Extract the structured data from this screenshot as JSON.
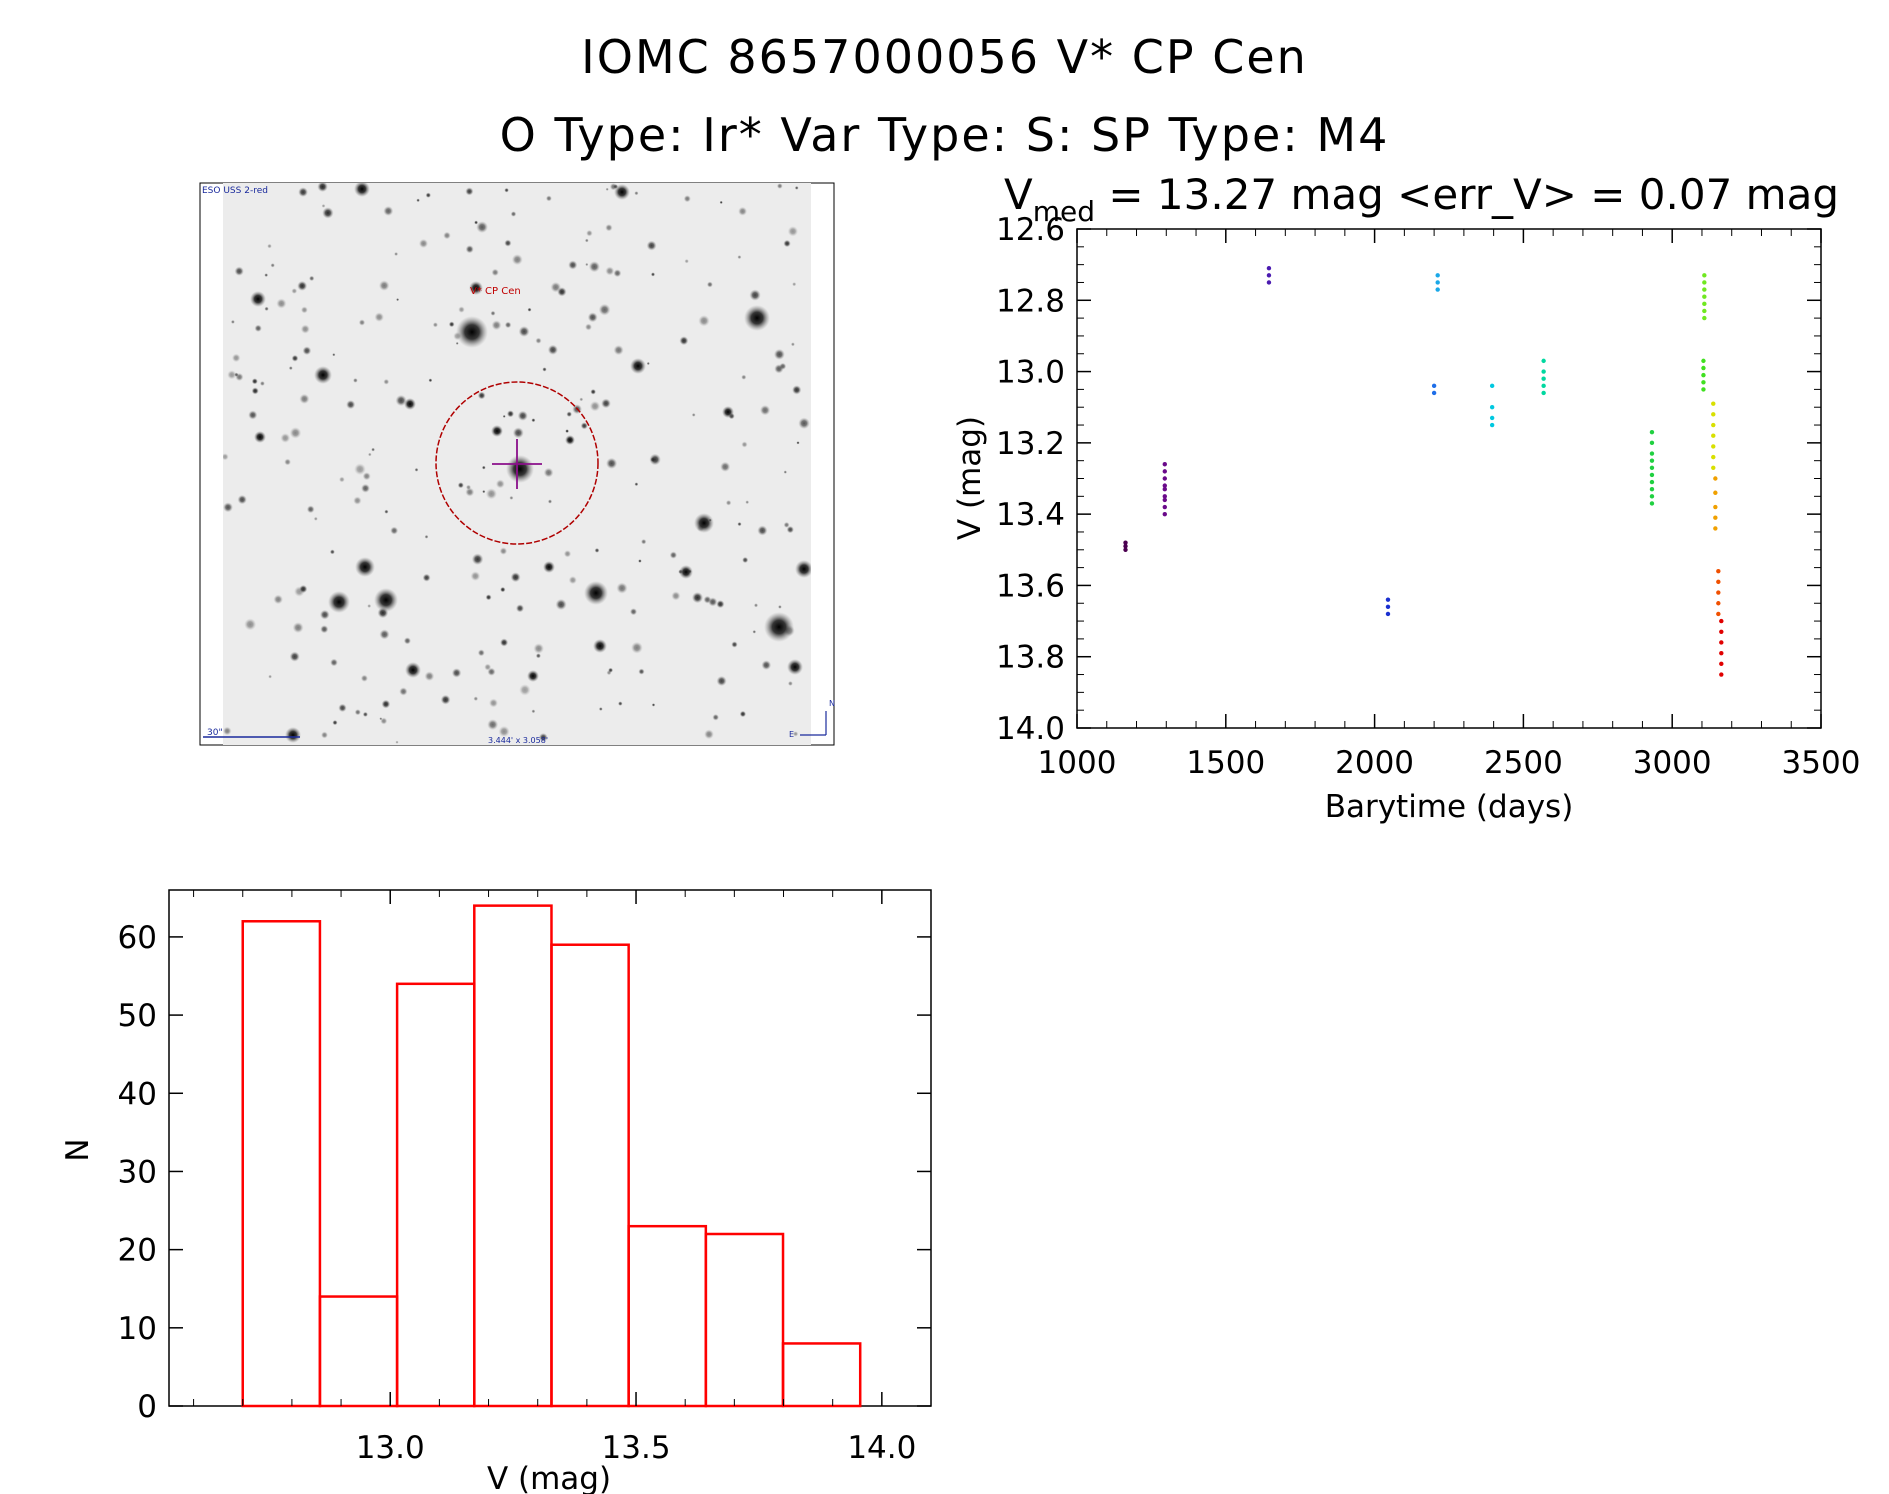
{
  "header": {
    "title_line1": "IOMC 8657000056    V* CP Cen",
    "title_line2": "O Type: Ir*  Var Type: S:  SP Type: M4"
  },
  "finder": {
    "survey_label": "ESO USS 2-red",
    "object_label": "V* CP Cen",
    "scale_label": "30\"",
    "fov_label": "3.444' x 3.058'",
    "north_label": "N",
    "east_label": "E"
  },
  "colors": {
    "histogram": "#ff0000",
    "finder_circle": "#b00000",
    "finder_cross": "#8a0f8a",
    "finder_text": "#c00000",
    "finder_scale": "#1a2a9c"
  },
  "chart_data": [
    {
      "type": "scatter",
      "title": "V_med = 13.27 mag <err_V> = 0.07 mag",
      "title_parts": {
        "v": "V",
        "sub": "med",
        "rest": " = 13.27 mag <err_V> = 0.07 mag"
      },
      "xlabel": "Barytime (days)",
      "ylabel": "V (mag)",
      "xlim": [
        1000,
        3500
      ],
      "ylim": [
        14.0,
        12.6
      ],
      "y_inverted": true,
      "xticks": [
        1000,
        1500,
        2000,
        2500,
        3000,
        3500
      ],
      "xtick_labels": [
        "1000",
        "1500",
        "2000",
        "2500",
        "3000",
        "3500"
      ],
      "yticks": [
        12.6,
        12.8,
        13.0,
        13.2,
        13.4,
        13.6,
        13.8,
        14.0
      ],
      "ytick_labels": [
        "12.6",
        "12.8",
        "13.0",
        "13.2",
        "13.4",
        "13.6",
        "13.8",
        "14.0"
      ],
      "color_by": "time (rainbow)",
      "groups": [
        {
          "x": 1163,
          "y": [
            13.48,
            13.49,
            13.5
          ],
          "color": "#4b0050"
        },
        {
          "x": 1295,
          "y": [
            13.26,
            13.28,
            13.3,
            13.32,
            13.33,
            13.35,
            13.36,
            13.38,
            13.4
          ],
          "color": "#6a0a8a"
        },
        {
          "x": 1645,
          "y": [
            12.71,
            12.73,
            12.75
          ],
          "color": "#4a1ab0"
        },
        {
          "x": 2045,
          "y": [
            13.64,
            13.66,
            13.68
          ],
          "color": "#1a30d0"
        },
        {
          "x": 2200,
          "y": [
            13.04,
            13.06
          ],
          "color": "#1e6ee8"
        },
        {
          "x": 2212,
          "y": [
            12.73,
            12.75,
            12.77
          ],
          "color": "#1aa8e8"
        },
        {
          "x": 2395,
          "y": [
            13.04,
            13.1,
            13.13,
            13.15
          ],
          "color": "#00c8e0"
        },
        {
          "x": 2568,
          "y": [
            12.97,
            13.0,
            13.02,
            13.04,
            13.06
          ],
          "color": "#00d8a0"
        },
        {
          "x": 2932,
          "y": [
            13.17,
            13.2,
            13.23,
            13.25,
            13.27,
            13.29,
            13.31,
            13.33,
            13.35,
            13.37
          ],
          "color": "#20d040"
        },
        {
          "x": 3105,
          "y": [
            12.97,
            12.99,
            13.01,
            13.03,
            13.05
          ],
          "color": "#40e020"
        },
        {
          "x": 3108,
          "y": [
            12.73,
            12.75,
            12.77,
            12.79,
            12.81,
            12.83,
            12.85
          ],
          "color": "#70e820"
        },
        {
          "x": 3138,
          "y": [
            13.09,
            13.12,
            13.15,
            13.18,
            13.21,
            13.24,
            13.27
          ],
          "color": "#d8e000"
        },
        {
          "x": 3145,
          "y": [
            13.3,
            13.34,
            13.38,
            13.41,
            13.44
          ],
          "color": "#f0a000"
        },
        {
          "x": 3155,
          "y": [
            13.56,
            13.59,
            13.62,
            13.65,
            13.68
          ],
          "color": "#f05000"
        },
        {
          "x": 3165,
          "y": [
            13.7,
            13.73,
            13.76,
            13.79,
            13.82,
            13.85
          ],
          "color": "#e00000"
        }
      ]
    },
    {
      "type": "bar",
      "histogram": true,
      "xlabel": "V (mag)",
      "ylabel": "N",
      "xlim": [
        12.55,
        14.1
      ],
      "ylim": [
        0,
        66
      ],
      "xticks": [
        13.0,
        13.5,
        14.0
      ],
      "xtick_labels": [
        "13.0",
        "13.5",
        "14.0"
      ],
      "yticks": [
        0,
        10,
        20,
        30,
        40,
        50,
        60
      ],
      "ytick_labels": [
        "0",
        "10",
        "20",
        "30",
        "40",
        "50",
        "60"
      ],
      "bin_edges": [
        12.7,
        12.857,
        13.014,
        13.171,
        13.328,
        13.485,
        13.642,
        13.799,
        13.956
      ],
      "values": [
        62,
        14,
        54,
        64,
        59,
        23,
        22,
        8
      ]
    }
  ]
}
